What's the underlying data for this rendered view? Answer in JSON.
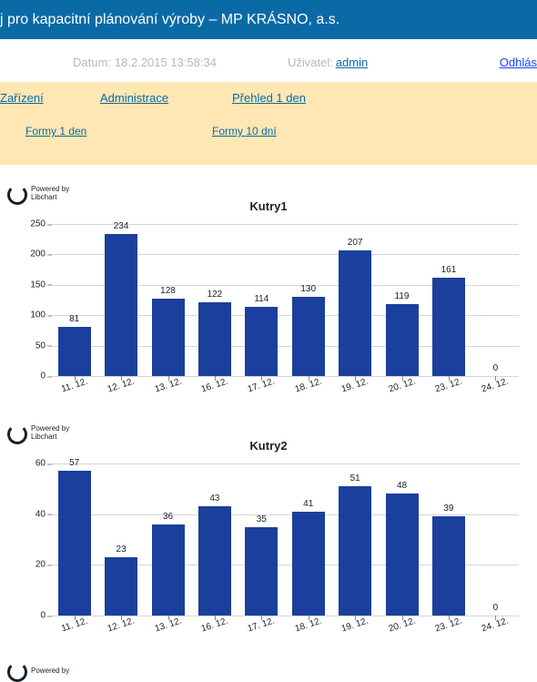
{
  "header": {
    "title": "j pro kapacitní plánování výroby – MP KRÁSNO, a.s."
  },
  "info": {
    "datum_label": "Datum:",
    "datum_value": "18.2.2015 13:58:34",
    "user_label": "Uživatel:",
    "user_value": "admin",
    "logout": "Odhlás"
  },
  "nav": {
    "zarizeni": "Zařízení",
    "administrace": "Administrace",
    "prehled1": "Přehled 1 den",
    "formy1": "Formy 1 den",
    "formy10": "Formy 10 dní"
  },
  "powered": {
    "line1": "Powered by",
    "line2": "Libchart"
  },
  "charts": [
    {
      "title": "Kutry1",
      "type": "bar",
      "ymax": 250,
      "ytick": 50,
      "categories": [
        "11. 12.",
        "12. 12.",
        "13. 12.",
        "16. 12.",
        "17. 12.",
        "18. 12.",
        "19. 12.",
        "20. 12.",
        "23. 12.",
        "24. 12."
      ],
      "values": [
        81,
        234,
        128,
        122,
        114,
        130,
        207,
        119,
        161,
        0
      ],
      "bar_color": "#1b3f9c",
      "grid_color": "#d6d6d6",
      "bg_color": "#ffffff"
    },
    {
      "title": "Kutry2",
      "type": "bar",
      "ymax": 60,
      "ytick": 20,
      "categories": [
        "11. 12.",
        "12. 12.",
        "13. 12.",
        "16. 12.",
        "17. 12.",
        "18. 12.",
        "19. 12.",
        "20. 12.",
        "23. 12.",
        "24. 12."
      ],
      "values": [
        57,
        23,
        36,
        43,
        35,
        41,
        51,
        48,
        39,
        0
      ],
      "bar_color": "#1b3f9c",
      "grid_color": "#d6d6d6",
      "bg_color": "#ffffff"
    }
  ]
}
